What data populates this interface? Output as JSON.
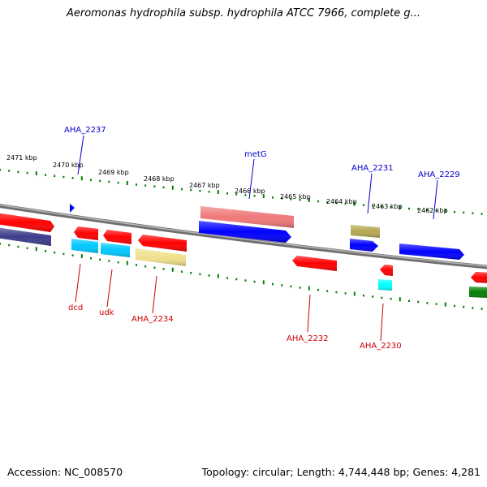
{
  "title": "Aeromonas hydrophila subsp. hydrophila ATCC 7966, complete g...",
  "footer": {
    "accession": "Accession: NC_008570",
    "topology": "Topology: circular; Length: 4,744,448 bp; Genes: 4,281"
  },
  "kbp_labels": [
    "2471 kbp",
    "2470 kbp",
    "2469 kbp",
    "2468 kbp",
    "2467 kbp",
    "2466 kbp",
    "2465 kbp",
    "2464 kbp",
    "2463 kbp",
    "2462 kbp"
  ],
  "genes_top": [
    "AHA_2237",
    "metG",
    "AHA_2231",
    "AHA_2229"
  ],
  "genes_bottom": [
    "dcd",
    "udk",
    "AHA_2234",
    "AHA_2232",
    "AHA_2230"
  ],
  "colors": {
    "red": "#ff0000",
    "navy": "#3c3c8c",
    "blue": "#0000ff",
    "cyan": "#00c8ff",
    "salmon": "#f07878",
    "olive": "#b4a850",
    "khaki": "#f0e08c",
    "green": "#008000",
    "tick_green": "#008000",
    "backbone": "#808080",
    "label_blue": "#0000cc",
    "label_red": "#cc0000"
  }
}
